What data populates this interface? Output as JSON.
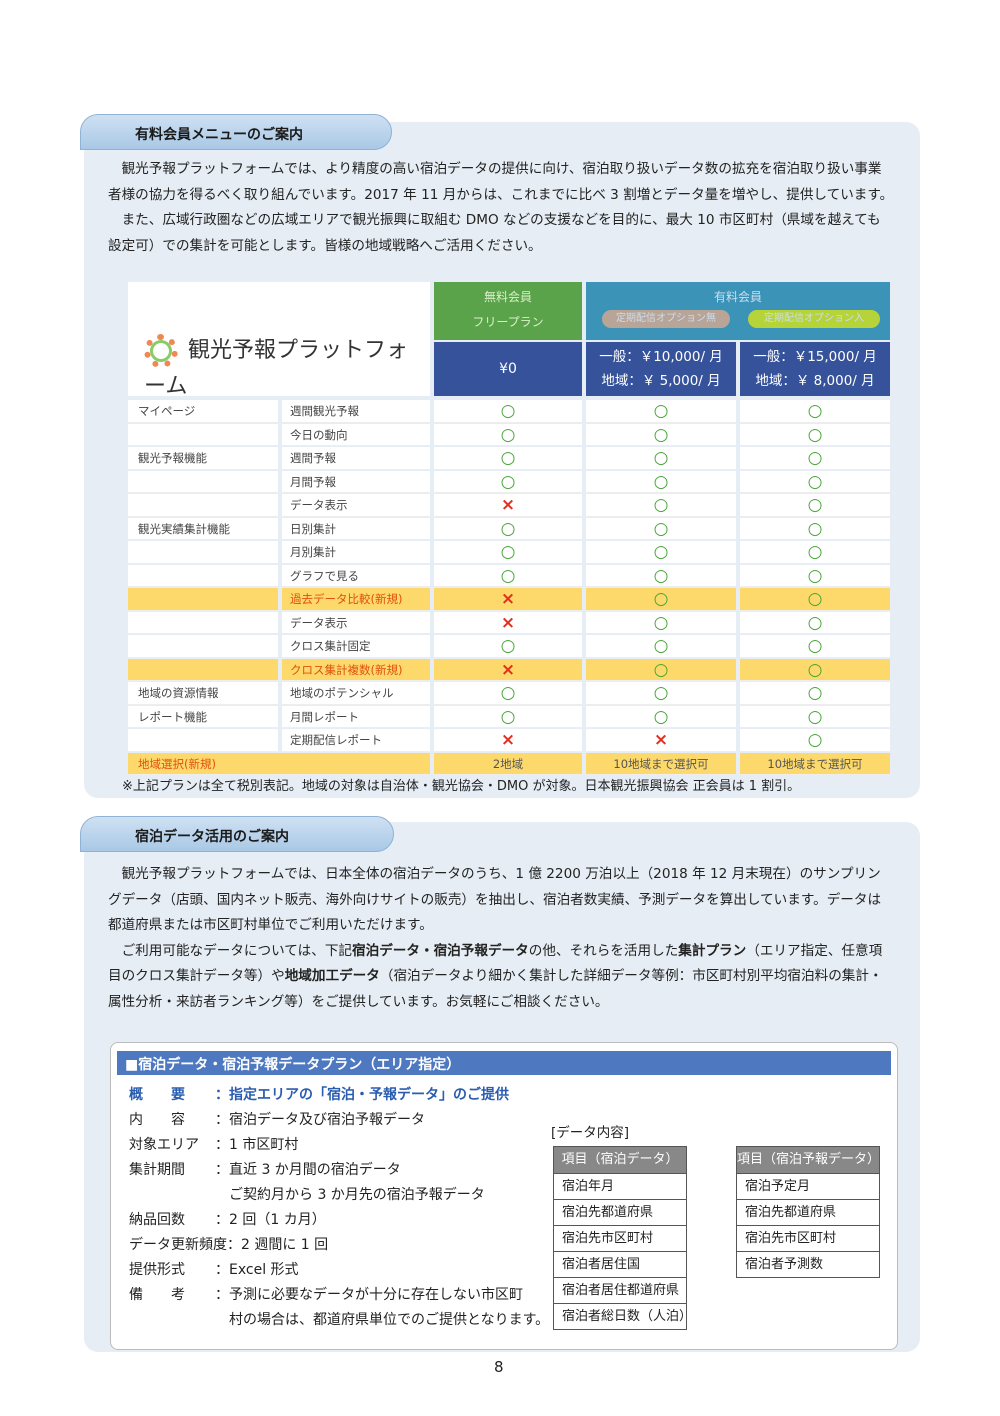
{
  "section1": {
    "heading": "有料会員メニューのご案内",
    "paragraphs": [
      "観光予報プラットフォームでは、より精度の高い宿泊データの提供に向け、宿泊取り扱いデータ数の拡充を宿泊取り扱い事業者様の協力を得るべく取り組んでいます。2017 年 11 月からは、これまでに比べ 3 割増とデータ量を増やし、提供しています。",
      "また、広域行政圏などの広域エリアで観光振興に取組む DMO などの支援などを目的に、最大 10 市区町村（県域を越えても設定可）での集計を可能とします。皆様の地域戦略へご活用ください。"
    ],
    "logo_text": "観光予報プラットフォーム",
    "table": {
      "free_header": "無料会員",
      "free_sub": "フリープラン",
      "paid_header": "有料会員",
      "opt_none": "定期配信オプション無",
      "opt_yes": "定期配信オプション入",
      "price_free": "¥0",
      "price_none": [
        "一般：￥10,000/ 月",
        "地域：￥ 5,000/ 月"
      ],
      "price_yes": [
        "一般：￥15,000/ 月",
        "地域：￥ 8,000/ 月"
      ],
      "rows": [
        {
          "group": "マイページ",
          "item": "週間観光予報",
          "marks": [
            "o",
            "o",
            "o"
          ]
        },
        {
          "group": "",
          "item": "今日の動向",
          "marks": [
            "o",
            "o",
            "o"
          ]
        },
        {
          "group": "観光予報機能",
          "item": "週間予報",
          "marks": [
            "o",
            "o",
            "o"
          ]
        },
        {
          "group": "",
          "item": "月間予報",
          "marks": [
            "o",
            "o",
            "o"
          ]
        },
        {
          "group": "",
          "item": "データ表示",
          "marks": [
            "x",
            "o",
            "o"
          ]
        },
        {
          "group": "観光実績集計機能",
          "item": "日別集計",
          "marks": [
            "o",
            "o",
            "o"
          ]
        },
        {
          "group": "",
          "item": "月別集計",
          "marks": [
            "o",
            "o",
            "o"
          ]
        },
        {
          "group": "",
          "item": "グラフで見る",
          "marks": [
            "o",
            "o",
            "o"
          ]
        },
        {
          "group": "",
          "item": "過去データ比較(新規)",
          "marks": [
            "x",
            "o",
            "o"
          ],
          "highlight": true
        },
        {
          "group": "",
          "item": "データ表示",
          "marks": [
            "x",
            "o",
            "o"
          ]
        },
        {
          "group": "",
          "item": "クロス集計固定",
          "marks": [
            "o",
            "o",
            "o"
          ]
        },
        {
          "group": "",
          "item": "クロス集計複数(新規)",
          "marks": [
            "x",
            "o",
            "o"
          ],
          "highlight": true
        },
        {
          "group": "地域の資源情報",
          "item": "地域のポテンシャル",
          "marks": [
            "o",
            "o",
            "o"
          ]
        },
        {
          "group": "レポート機能",
          "item": "月間レポート",
          "marks": [
            "o",
            "o",
            "o"
          ]
        },
        {
          "group": "",
          "item": "定期配信レポート",
          "marks": [
            "x",
            "x",
            "o"
          ]
        }
      ],
      "last_row": {
        "label": "地域選択(新規)",
        "values": [
          "2地域",
          "10地域まで選択可",
          "10地域まで選択可"
        ]
      }
    },
    "note": "※上記プランは全て税別表記。地域の対象は自治体・観光協会・DMO が対象。日本観光振興協会 正会員は 1 割引。"
  },
  "section2": {
    "heading": "宿泊データ活用のご案内",
    "p1": "観光予報プラットフォームでは、日本全体の宿泊データのうち、1 億 2200 万泊以上（2018 年 12 月末現在）のサンプリングデータ（店頭、国内ネット販売、海外向けサイトの販売）を抽出し、宿泊者数実績、予測データを算出しています。データは都道府県または市区町村単位でご利用いただけます。",
    "p2a": "ご利用可能なデータについては、下記",
    "p2b": "宿泊データ・宿泊予報データ",
    "p2c": "の他、それらを活用した",
    "p2d": "集計プラン",
    "p2e": "（エリア指定、任意項目のクロス集計データ等）や",
    "p2f": "地域加工データ",
    "p2g": "（宿泊データより細かく集計した詳細データ等例：市区町村別平均宿泊料の集計・属性分析・来訪者ランキング等）をご提供しています。お気軽にご相談ください。",
    "box": {
      "title": "■宿泊データ・宿泊予報データプラン（エリア指定）",
      "items": [
        [
          "概　　要",
          "：指定エリアの「宿泊・予報データ」のご提供"
        ],
        [
          "内　　容",
          "：宿泊データ及び宿泊予報データ"
        ],
        [
          "対象エリア",
          "：1 市区町村"
        ],
        [
          "集計期間",
          "：直近 3 か月間の宿泊データ"
        ],
        [
          "",
          "　ご契約月から 3 か月先の宿泊予報データ"
        ],
        [
          "納品回数",
          "：2 回（1 カ月）"
        ],
        [
          "データ更新頻度",
          "：2 週間に 1 回"
        ],
        [
          "提供形式",
          "：Excel 形式"
        ],
        [
          "備　　考",
          "：予測に必要なデータが十分に存在しない市区町"
        ],
        [
          "",
          "　村の場合は、都道府県単位でのご提供となります。"
        ]
      ],
      "data_label": "[データ内容]",
      "stay_header": "項目（宿泊データ）",
      "stay_items": [
        "宿泊年月",
        "宿泊先都道府県",
        "宿泊先市区町村",
        "宿泊者居住国",
        "宿泊者居住都道府県",
        "宿泊者総日数（人泊）"
      ],
      "forecast_header": "項目（宿泊予報データ）",
      "forecast_items": [
        "宿泊予定月",
        "宿泊先都道府県",
        "宿泊先市区町村",
        "宿泊者予測数"
      ]
    }
  },
  "page_number": "8",
  "colors": {
    "free_green": "#5aa34a",
    "paid_teal": "#3b94b8",
    "price_navy": "#36529a",
    "highlight": "#fcd96a",
    "circle": "#4aa53a",
    "cross": "#e03020"
  }
}
